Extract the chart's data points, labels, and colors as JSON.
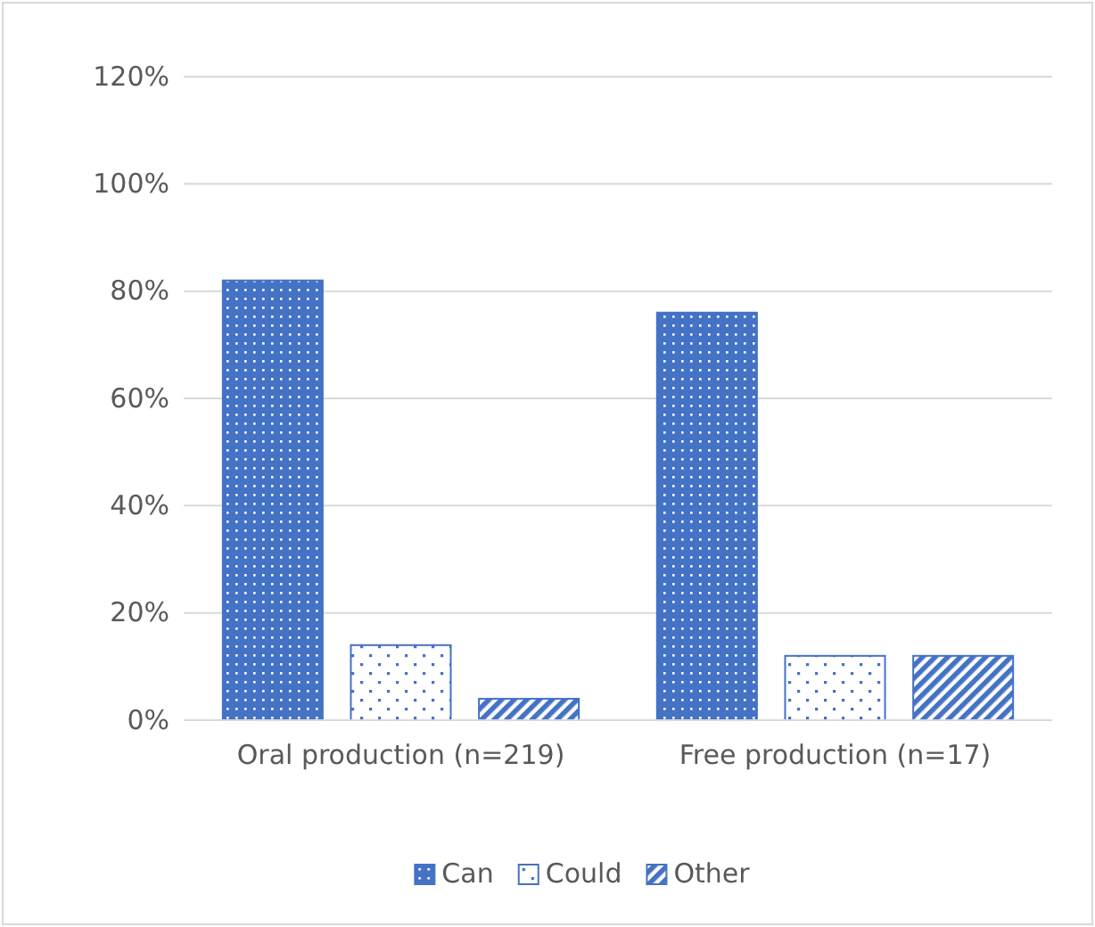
{
  "chart_data": {
    "type": "bar",
    "categories": [
      "Oral production (n=219)",
      "Free production (n=17)"
    ],
    "series": [
      {
        "name": "Can",
        "color": "#4472c4",
        "values": [
          82,
          76
        ]
      },
      {
        "name": "Could",
        "color": "#4472c4",
        "values": [
          14,
          12
        ]
      },
      {
        "name": "Other",
        "color": "#4472c4",
        "values": [
          4,
          12
        ]
      }
    ],
    "ylim": [
      0,
      120
    ],
    "yticks": [
      {
        "value": 0,
        "label": "0%"
      },
      {
        "value": 20,
        "label": "20%"
      },
      {
        "value": 40,
        "label": "40%"
      },
      {
        "value": 60,
        "label": "60%"
      },
      {
        "value": 80,
        "label": "80%"
      },
      {
        "value": 100,
        "label": "100%"
      },
      {
        "value": 120,
        "label": "120%"
      }
    ],
    "grid": "y",
    "legend": "bottom"
  }
}
